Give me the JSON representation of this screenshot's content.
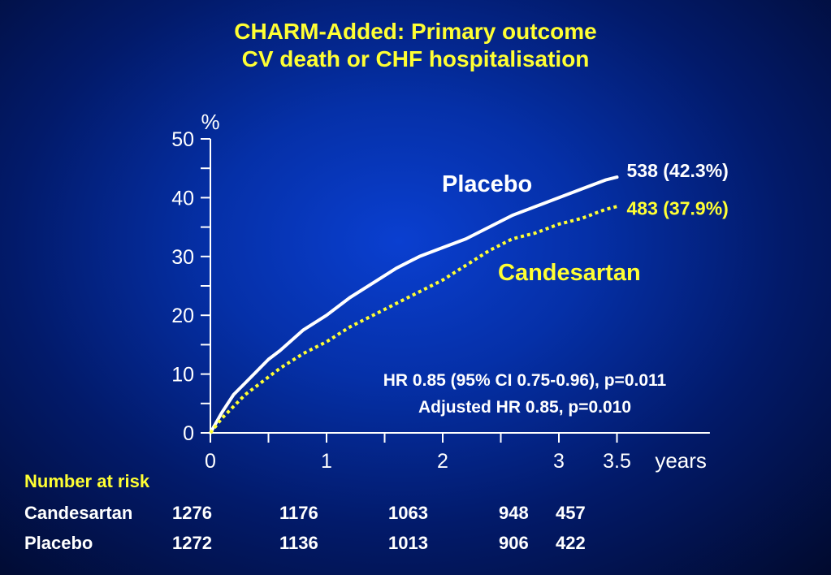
{
  "title": {
    "line1": "CHARM-Added: Primary outcome",
    "line2": "CV death or CHF hospitalisation"
  },
  "colors": {
    "placebo": "#ffffff",
    "candesartan": "#ffff33",
    "title": "#ffff33",
    "background": "#0530a8"
  },
  "chart_data": {
    "type": "line",
    "ylabel": "%",
    "xlabel": "years",
    "xlim": [
      0,
      4.3
    ],
    "ylim": [
      0,
      50
    ],
    "grid": false,
    "y_ticks": [
      0,
      10,
      20,
      30,
      40,
      50
    ],
    "x_tick_labels": [
      {
        "value": 0,
        "label": "0"
      },
      {
        "value": 1,
        "label": "1"
      },
      {
        "value": 2,
        "label": "2"
      },
      {
        "value": 3,
        "label": "3"
      },
      {
        "value": 3.5,
        "label": "3.5"
      }
    ],
    "x_minor_ticks": [
      0.5,
      1.5,
      2.5
    ],
    "series": [
      {
        "name": "Placebo",
        "style": "solid",
        "end_label": "538 (42.3%)",
        "x": [
          0,
          0.1,
          0.2,
          0.3,
          0.4,
          0.5,
          0.6,
          0.8,
          1.0,
          1.2,
          1.4,
          1.6,
          1.8,
          2.0,
          2.2,
          2.4,
          2.6,
          2.8,
          3.0,
          3.2,
          3.4,
          3.5
        ],
        "y": [
          0,
          3.5,
          6.5,
          8.5,
          10.5,
          12.5,
          14,
          17.5,
          20,
          23,
          25.5,
          28,
          30,
          31.5,
          33,
          35,
          37,
          38.5,
          40,
          41.5,
          43,
          43.5
        ]
      },
      {
        "name": "Candesartan",
        "style": "dotted",
        "end_label": "483 (37.9%)",
        "x": [
          0,
          0.1,
          0.2,
          0.3,
          0.4,
          0.5,
          0.6,
          0.8,
          1.0,
          1.2,
          1.4,
          1.6,
          1.8,
          2.0,
          2.2,
          2.4,
          2.6,
          2.8,
          3.0,
          3.2,
          3.4,
          3.5
        ],
        "y": [
          0,
          2.5,
          4.5,
          6.5,
          8,
          9.5,
          11,
          13.5,
          15.5,
          18,
          20,
          22,
          24,
          26,
          28.5,
          31,
          33,
          34,
          35.5,
          36.5,
          38,
          38.5
        ]
      }
    ],
    "annotations": {
      "placebo_label": "Placebo",
      "candesartan_label": "Candesartan",
      "hr_line1": "HR 0.85  (95% CI 0.75-0.96), p=0.011",
      "hr_line2": "Adjusted HR 0.85, p=0.010"
    }
  },
  "risk_table": {
    "heading": "Number at risk",
    "rows": [
      {
        "label": "Candesartan",
        "values": [
          "1276",
          "1176",
          "1063",
          "948",
          "457"
        ]
      },
      {
        "label": "Placebo",
        "values": [
          "1272",
          "1136",
          "1013",
          "906",
          "422"
        ]
      }
    ]
  }
}
